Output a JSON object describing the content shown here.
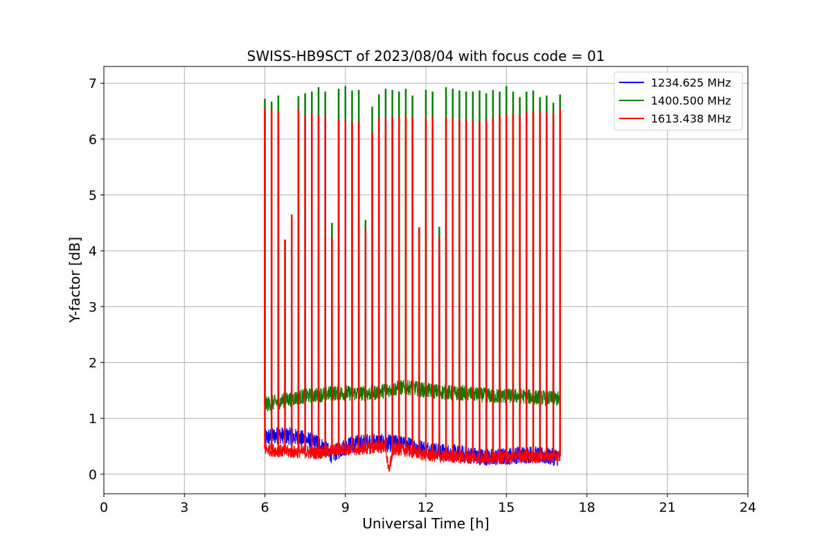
{
  "chart_data": {
    "type": "line",
    "title": "SWISS-HB9SCT of 2023/08/04 with focus code = 01",
    "xlabel": "Universal Time [h]",
    "ylabel": "Y-factor [dB]",
    "xlim": [
      0,
      24
    ],
    "ylim": [
      -0.35,
      7.3
    ],
    "xticks": [
      0,
      3,
      6,
      9,
      12,
      15,
      18,
      21,
      24
    ],
    "yticks": [
      0,
      1,
      2,
      3,
      4,
      5,
      6,
      7
    ],
    "grid": true,
    "legend_position": "top-right",
    "data_range_x": [
      6.0,
      17.0
    ],
    "series": [
      {
        "name": "1234.625 MHz",
        "color": "#0000ff",
        "baseline": [
          [
            6.0,
            0.65
          ],
          [
            6.5,
            0.7
          ],
          [
            7.0,
            0.68
          ],
          [
            7.5,
            0.62
          ],
          [
            8.0,
            0.55
          ],
          [
            8.5,
            0.35
          ],
          [
            9.0,
            0.5
          ],
          [
            9.5,
            0.55
          ],
          [
            10.0,
            0.6
          ],
          [
            10.5,
            0.55
          ],
          [
            11.0,
            0.55
          ],
          [
            11.5,
            0.5
          ],
          [
            12.0,
            0.45
          ],
          [
            12.5,
            0.4
          ],
          [
            13.0,
            0.38
          ],
          [
            13.5,
            0.35
          ],
          [
            14.0,
            0.32
          ],
          [
            14.5,
            0.3
          ],
          [
            15.0,
            0.32
          ],
          [
            15.5,
            0.35
          ],
          [
            16.0,
            0.35
          ],
          [
            16.5,
            0.32
          ],
          [
            17.0,
            0.3
          ]
        ]
      },
      {
        "name": "1400.500 MHz",
        "color": "#008000",
        "baseline": [
          [
            6.0,
            1.25
          ],
          [
            6.5,
            1.3
          ],
          [
            7.0,
            1.35
          ],
          [
            7.5,
            1.4
          ],
          [
            8.0,
            1.42
          ],
          [
            8.5,
            1.45
          ],
          [
            9.0,
            1.45
          ],
          [
            9.5,
            1.45
          ],
          [
            10.0,
            1.45
          ],
          [
            10.5,
            1.5
          ],
          [
            11.0,
            1.55
          ],
          [
            11.5,
            1.55
          ],
          [
            12.0,
            1.5
          ],
          [
            12.5,
            1.48
          ],
          [
            13.0,
            1.45
          ],
          [
            13.5,
            1.45
          ],
          [
            14.0,
            1.42
          ],
          [
            14.5,
            1.4
          ],
          [
            15.0,
            1.4
          ],
          [
            15.5,
            1.4
          ],
          [
            16.0,
            1.38
          ],
          [
            16.5,
            1.36
          ],
          [
            17.0,
            1.35
          ]
        ],
        "peaks": [
          [
            6.0,
            6.72
          ],
          [
            6.25,
            6.67
          ],
          [
            6.5,
            6.78
          ],
          [
            6.75,
            4.2
          ],
          [
            7.0,
            4.6
          ],
          [
            7.25,
            6.77
          ],
          [
            7.5,
            6.82
          ],
          [
            7.75,
            6.85
          ],
          [
            8.0,
            6.93
          ],
          [
            8.25,
            6.85
          ],
          [
            8.5,
            4.5
          ],
          [
            8.75,
            6.9
          ],
          [
            9.0,
            6.95
          ],
          [
            9.25,
            6.87
          ],
          [
            9.5,
            6.88
          ],
          [
            9.75,
            4.55
          ],
          [
            10.0,
            6.58
          ],
          [
            10.25,
            6.8
          ],
          [
            10.5,
            6.9
          ],
          [
            10.75,
            6.88
          ],
          [
            11.0,
            6.85
          ],
          [
            11.25,
            6.9
          ],
          [
            11.5,
            6.78
          ],
          [
            11.75,
            4.4
          ],
          [
            12.0,
            6.88
          ],
          [
            12.25,
            6.85
          ],
          [
            12.5,
            4.43
          ],
          [
            12.75,
            6.93
          ],
          [
            13.0,
            6.9
          ],
          [
            13.25,
            6.87
          ],
          [
            13.5,
            6.85
          ],
          [
            13.75,
            6.85
          ],
          [
            14.0,
            6.87
          ],
          [
            14.25,
            6.82
          ],
          [
            14.5,
            6.88
          ],
          [
            14.75,
            6.85
          ],
          [
            15.0,
            6.95
          ],
          [
            15.25,
            6.85
          ],
          [
            15.5,
            6.75
          ],
          [
            15.75,
            6.85
          ],
          [
            16.0,
            6.87
          ],
          [
            16.25,
            6.75
          ],
          [
            16.5,
            6.78
          ],
          [
            16.75,
            6.65
          ],
          [
            17.0,
            6.8
          ]
        ]
      },
      {
        "name": "1613.438 MHz",
        "color": "#ff0000",
        "baseline": [
          [
            6.0,
            0.45
          ],
          [
            6.5,
            0.42
          ],
          [
            7.0,
            0.4
          ],
          [
            7.5,
            0.4
          ],
          [
            8.0,
            0.38
          ],
          [
            8.5,
            0.42
          ],
          [
            9.0,
            0.45
          ],
          [
            9.5,
            0.45
          ],
          [
            10.0,
            0.48
          ],
          [
            10.5,
            0.5
          ],
          [
            10.6,
            0.05
          ],
          [
            10.8,
            0.45
          ],
          [
            11.0,
            0.45
          ],
          [
            11.5,
            0.4
          ],
          [
            12.0,
            0.35
          ],
          [
            12.5,
            0.32
          ],
          [
            13.0,
            0.32
          ],
          [
            13.5,
            0.3
          ],
          [
            14.0,
            0.3
          ],
          [
            14.5,
            0.3
          ],
          [
            15.0,
            0.3
          ],
          [
            15.5,
            0.32
          ],
          [
            16.0,
            0.32
          ],
          [
            16.5,
            0.32
          ],
          [
            17.0,
            0.32
          ]
        ],
        "peaks": [
          [
            6.0,
            6.55
          ],
          [
            6.25,
            6.52
          ],
          [
            6.5,
            6.5
          ],
          [
            6.75,
            4.2
          ],
          [
            7.0,
            4.65
          ],
          [
            7.25,
            6.53
          ],
          [
            7.5,
            6.42
          ],
          [
            7.75,
            6.45
          ],
          [
            8.0,
            6.42
          ],
          [
            8.25,
            6.42
          ],
          [
            8.5,
            4.25
          ],
          [
            8.75,
            6.35
          ],
          [
            9.0,
            6.33
          ],
          [
            9.25,
            6.3
          ],
          [
            9.5,
            6.33
          ],
          [
            9.75,
            4.4
          ],
          [
            10.0,
            6.12
          ],
          [
            10.25,
            6.38
          ],
          [
            10.5,
            6.38
          ],
          [
            10.75,
            6.4
          ],
          [
            11.0,
            6.4
          ],
          [
            11.25,
            6.42
          ],
          [
            11.5,
            6.38
          ],
          [
            11.75,
            4.42
          ],
          [
            12.0,
            6.38
          ],
          [
            12.25,
            6.4
          ],
          [
            12.5,
            4.25
          ],
          [
            12.75,
            6.38
          ],
          [
            13.0,
            6.38
          ],
          [
            13.25,
            6.35
          ],
          [
            13.5,
            6.35
          ],
          [
            13.75,
            6.32
          ],
          [
            14.0,
            6.32
          ],
          [
            14.25,
            6.35
          ],
          [
            14.5,
            6.38
          ],
          [
            14.75,
            6.42
          ],
          [
            15.0,
            6.45
          ],
          [
            15.25,
            6.45
          ],
          [
            15.5,
            6.42
          ],
          [
            15.75,
            6.5
          ],
          [
            16.0,
            6.5
          ],
          [
            16.25,
            6.5
          ],
          [
            16.5,
            6.48
          ],
          [
            16.75,
            6.45
          ],
          [
            17.0,
            6.55
          ]
        ]
      }
    ]
  }
}
